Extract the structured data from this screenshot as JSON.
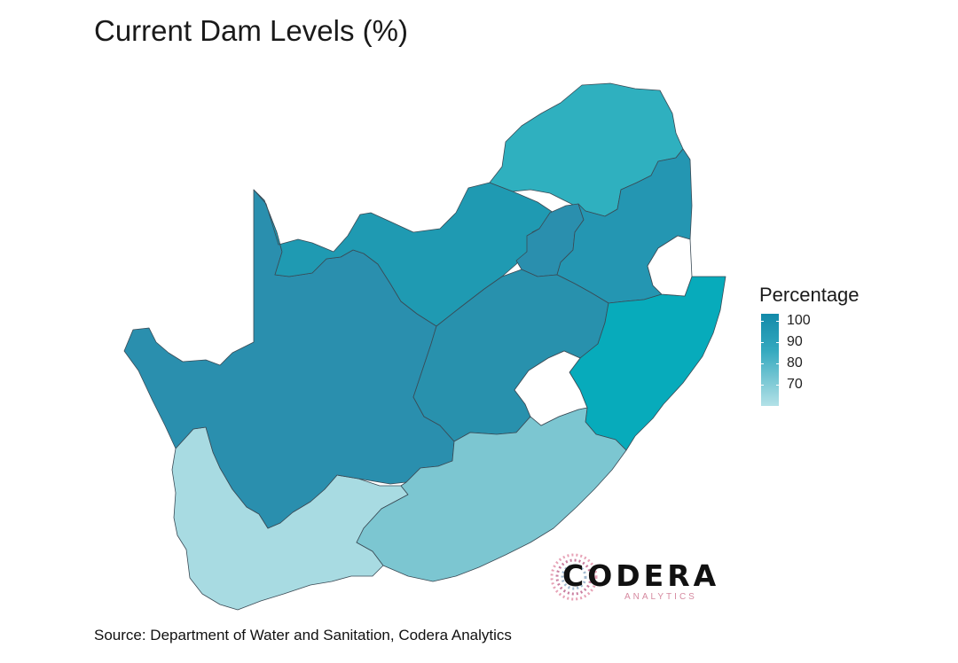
{
  "title": "Current Dam Levels (%)",
  "legend": {
    "title": "Percentage",
    "ticks": [
      "100",
      "90",
      "80",
      "70"
    ]
  },
  "source": "Source: Department of Water and Sanitation, Codera Analytics",
  "logo": {
    "name": "CODERA",
    "subtitle": "ANALYTICS"
  },
  "colors": {
    "northern_cape": "#2a8fae",
    "north_west": "#1f9ab2",
    "limpopo": "#2fb0bf",
    "gauteng": "#2a8fae",
    "mpumalanga": "#2496b2",
    "free_state": "#2891ad",
    "kwazulu_natal": "#07abbb",
    "eastern_cape": "#7cc6d1",
    "western_cape": "#a8dbe2"
  },
  "chart_data": {
    "type": "choropleth",
    "title": "Current Dam Levels (%)",
    "legend_title": "Percentage",
    "scale_ticks": [
      100,
      90,
      80,
      70
    ]
  }
}
